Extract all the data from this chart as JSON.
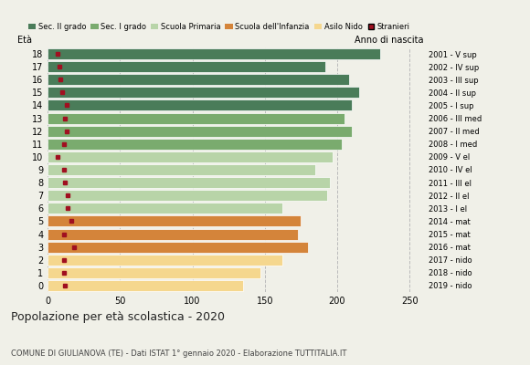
{
  "ages": [
    18,
    17,
    16,
    15,
    14,
    13,
    12,
    11,
    10,
    9,
    8,
    7,
    6,
    5,
    4,
    3,
    2,
    1,
    0
  ],
  "values": [
    230,
    192,
    208,
    215,
    210,
    205,
    210,
    203,
    197,
    185,
    195,
    193,
    162,
    175,
    173,
    180,
    162,
    147,
    135
  ],
  "stranieri": [
    7,
    8,
    9,
    10,
    13,
    12,
    13,
    11,
    7,
    11,
    12,
    14,
    14,
    16,
    11,
    18,
    11,
    11,
    12
  ],
  "right_labels": [
    "2001 - V sup",
    "2002 - IV sup",
    "2003 - III sup",
    "2004 - II sup",
    "2005 - I sup",
    "2006 - III med",
    "2007 - II med",
    "2008 - I med",
    "2009 - V el",
    "2010 - IV el",
    "2011 - III el",
    "2012 - II el",
    "2013 - I el",
    "2014 - mat",
    "2015 - mat",
    "2016 - mat",
    "2017 - nido",
    "2018 - nido",
    "2019 - nido"
  ],
  "bar_colors": [
    "#4a7c59",
    "#4a7c59",
    "#4a7c59",
    "#4a7c59",
    "#4a7c59",
    "#7aab6e",
    "#7aab6e",
    "#7aab6e",
    "#b8d4a8",
    "#b8d4a8",
    "#b8d4a8",
    "#b8d4a8",
    "#b8d4a8",
    "#d4843a",
    "#d4843a",
    "#d4843a",
    "#f5d78e",
    "#f5d78e",
    "#f5d78e"
  ],
  "legend_labels": [
    "Sec. II grado",
    "Sec. I grado",
    "Scuola Primaria",
    "Scuola dell'Infanzia",
    "Asilo Nido",
    "Stranieri"
  ],
  "legend_colors": [
    "#4a7c59",
    "#7aab6e",
    "#b8d4a8",
    "#d4843a",
    "#f5d78e",
    "#a01020"
  ],
  "title": "Popolazione per età scolastica - 2020",
  "subtitle": "COMUNE DI GIULIANOVA (TE) - Dati ISTAT 1° gennaio 2020 - Elaborazione TUTTITALIA.IT",
  "xlabel_age": "Età",
  "xlabel_year": "Anno di nascita",
  "stranieri_color": "#a01020",
  "background_color": "#f0f0e8",
  "grid_color": "#bbbbbb",
  "xlim": [
    0,
    260
  ]
}
